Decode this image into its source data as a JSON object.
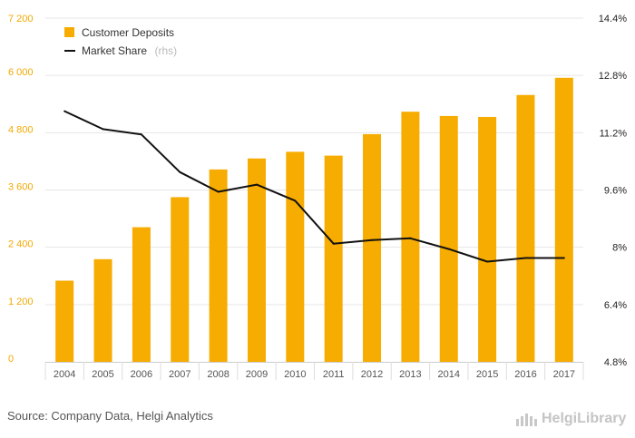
{
  "chart_data": {
    "type": "bar",
    "categories": [
      "2004",
      "2005",
      "2006",
      "2007",
      "2008",
      "2009",
      "2010",
      "2011",
      "2012",
      "2013",
      "2014",
      "2015",
      "2016",
      "2017"
    ],
    "series": [
      {
        "name": "Customer Deposits",
        "type": "bar",
        "axis": "left",
        "color": "#f6ac00",
        "values": [
          1700,
          2150,
          2820,
          3450,
          4030,
          4260,
          4400,
          4320,
          4770,
          5240,
          5150,
          5130,
          5590,
          5950
        ]
      },
      {
        "name": "Market Share",
        "legend_note": "(rhs)",
        "type": "line",
        "axis": "right",
        "color": "#111111",
        "values": [
          11.8,
          11.3,
          11.15,
          10.1,
          9.55,
          9.75,
          9.3,
          8.1,
          8.2,
          8.25,
          7.95,
          7.6,
          7.7,
          7.7
        ]
      }
    ],
    "y_left": {
      "min": 0,
      "max": 7200,
      "ticks": [
        "0",
        "1 200",
        "2 400",
        "3 600",
        "4 800",
        "6 000",
        "7 200"
      ]
    },
    "y_right": {
      "min": 4.8,
      "max": 14.4,
      "ticks": [
        "4.8%",
        "6.4%",
        "8%",
        "9.6%",
        "11.2%",
        "12.8%",
        "14.4%"
      ]
    },
    "grid": "horizontal",
    "legend_position": "top-left",
    "title": "",
    "xlabel": "",
    "ylabel": ""
  },
  "footer": {
    "source": "Source: Company Data, Helgi Analytics",
    "brand": "HelgiLibrary"
  },
  "colors": {
    "bar": "#f6ac00",
    "line": "#111111",
    "left_axis_text": "#f2a900",
    "grid": "#e6e6e6"
  }
}
